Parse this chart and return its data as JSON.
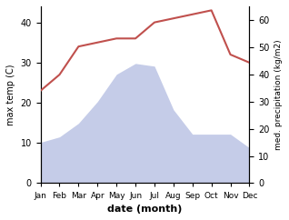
{
  "months": [
    "Jan",
    "Feb",
    "Mar",
    "Apr",
    "May",
    "Jun",
    "Jul",
    "Aug",
    "Sep",
    "Oct",
    "Nov",
    "Dec"
  ],
  "month_x": [
    1,
    2,
    3,
    4,
    5,
    6,
    7,
    8,
    9,
    10,
    11,
    12
  ],
  "temperature": [
    23,
    27,
    34,
    35,
    36,
    36,
    40,
    41,
    42,
    43,
    32,
    30
  ],
  "rainfall": [
    15,
    17,
    22,
    30,
    40,
    44,
    43,
    27,
    18,
    18,
    18,
    13
  ],
  "temp_color": "#c0504d",
  "rain_fill_color": "#c5cce8",
  "temp_ylim": [
    0,
    44
  ],
  "rain_ylim": [
    0,
    65
  ],
  "temp_yticks": [
    0,
    10,
    20,
    30,
    40
  ],
  "rain_yticks": [
    0,
    10,
    20,
    30,
    40,
    50,
    60
  ],
  "ylabel_left": "max temp (C)",
  "ylabel_right": "med. precipitation (kg/m2)",
  "xlabel": "date (month)",
  "figsize": [
    3.18,
    2.42
  ],
  "dpi": 100
}
